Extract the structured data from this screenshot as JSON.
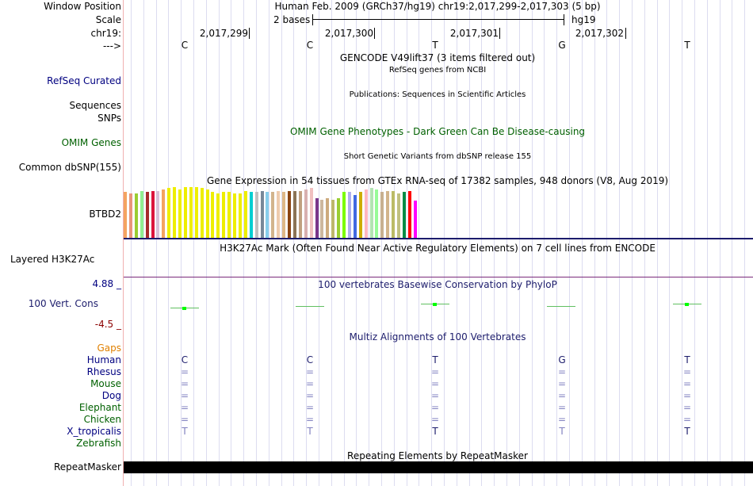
{
  "colors": {
    "blue_label": "#000080",
    "green_label": "#006000",
    "orange_label": "#e08000",
    "navy": "#1c1c6c",
    "gtex": [
      "#f4a460",
      "#e9967a",
      "#9acd32",
      "#90ee90",
      "#a52a2a",
      "#dc143c",
      "#d8bfd8",
      "#f4a460",
      "#eeee00",
      "#eeee00",
      "#eeee00",
      "#eeee00",
      "#eeee00",
      "#eeee00",
      "#eeee00",
      "#eeee00",
      "#eeee00",
      "#eeee00",
      "#eeee00",
      "#eeee00",
      "#eeee00",
      "#eeee00",
      "#eeee00",
      "#00ced1",
      "#c0c0c0",
      "#778899",
      "#87ceeb",
      "#d2b48c",
      "#eecbad",
      "#deb887",
      "#8b4513",
      "#8b7355",
      "#c0a080",
      "#d8b0b0",
      "#f0c0c0",
      "#7a378b",
      "#cdb79e",
      "#cdaa7d",
      "#bdb76b",
      "#9acd32",
      "#7cfc00",
      "#b0b0ee",
      "#4169e1",
      "#cdad00",
      "#ffb6c1",
      "#b3e4b3",
      "#98fb98",
      "#c8b090",
      "#d2b48c",
      "#bbbb66",
      "#c0c080",
      "#008b45",
      "#ff0000",
      "#ff00ff"
    ]
  },
  "labels": {
    "window_position": "Window Position",
    "scale": "Scale",
    "chrom": "chr19:",
    "strand": "--->",
    "refseq": "RefSeq Curated",
    "sequences": "Sequences",
    "snps": "SNPs",
    "omim": "OMIM Genes",
    "dbsnp": "Common dbSNP(155)",
    "btbd2": "BTBD2",
    "h3k27ac": "Layered H3K27Ac",
    "cons_top": "4.88 _",
    "cons_label": "100 Vert. Cons",
    "cons_bottom": "-4.5 _",
    "gaps": "Gaps",
    "species": [
      "Human",
      "Rhesus",
      "Mouse",
      "Dog",
      "Elephant",
      "Chicken",
      "X_tropicalis",
      "Zebrafish"
    ],
    "repeatmasker": "RepeatMasker"
  },
  "header": {
    "position_text": "Human Feb. 2009 (GRCh37/hg19)   chr19:2,017,299-2,017,303 (5 bp)",
    "scale_left": "2 bases",
    "scale_right": "hg19",
    "coords": [
      "2,017,299",
      "2,017,300",
      "2,017,301",
      "2,017,302"
    ],
    "bases": [
      "C",
      "C",
      "T",
      "G",
      "T"
    ]
  },
  "tracks": {
    "gencode": "GENCODE V49lift37 (3 items filtered out)",
    "refseq_desc": "RefSeq genes from NCBI",
    "publications": "Publications: Sequences in Scientific Articles",
    "omim_desc": "OMIM Gene Phenotypes - Dark Green Can Be Disease-causing",
    "dbsnp_desc": "Short Genetic Variants from dbSNP release 155",
    "gtex_title": "Gene Expression in 54 tissues from GTEx RNA-seq of 17382 samples, 948 donors (V8, Aug 2019)",
    "h3k27ac_desc": "H3K27Ac Mark (Often Found Near Active Regulatory Elements) on 7 cell lines from ENCODE",
    "cons_desc": "100 vertebrates Basewise Conservation by PhyloP",
    "multiz_desc": "Multiz Alignments of 100 Vertebrates",
    "repeat_desc": "Repeating Elements by RepeatMasker"
  },
  "alignment": {
    "human": [
      "C",
      "C",
      "T",
      "G",
      "T"
    ],
    "rhesus": [
      "=",
      "=",
      "=",
      "=",
      "="
    ],
    "mouse": [
      "=",
      "=",
      "=",
      "=",
      "="
    ],
    "dog": [
      "=",
      "=",
      "=",
      "=",
      "="
    ],
    "elephant": [
      "=",
      "=",
      "=",
      "=",
      "="
    ],
    "chicken": [
      "=",
      "=",
      "=",
      "=",
      "="
    ],
    "xtrop": [
      "T",
      "T",
      "T",
      "T",
      "T"
    ]
  },
  "gtex_values": [
    0.9,
    0.87,
    0.87,
    0.92,
    0.9,
    0.92,
    0.92,
    0.95,
    0.98,
    1.0,
    0.95,
    1.0,
    1.0,
    1.0,
    0.98,
    0.95,
    0.9,
    0.88,
    0.9,
    0.9,
    0.88,
    0.88,
    0.92,
    0.9,
    0.9,
    0.92,
    0.9,
    0.9,
    0.92,
    0.9,
    0.92,
    0.92,
    0.92,
    0.95,
    0.98,
    0.78,
    0.75,
    0.78,
    0.75,
    0.78,
    0.9,
    0.9,
    0.85,
    0.9,
    0.95,
    0.98,
    0.95,
    0.9,
    0.92,
    0.92,
    0.88,
    0.9,
    0.92,
    0.73
  ],
  "cons_values": [
    -0.2,
    0.0,
    0.4,
    0.0,
    0.4
  ]
}
